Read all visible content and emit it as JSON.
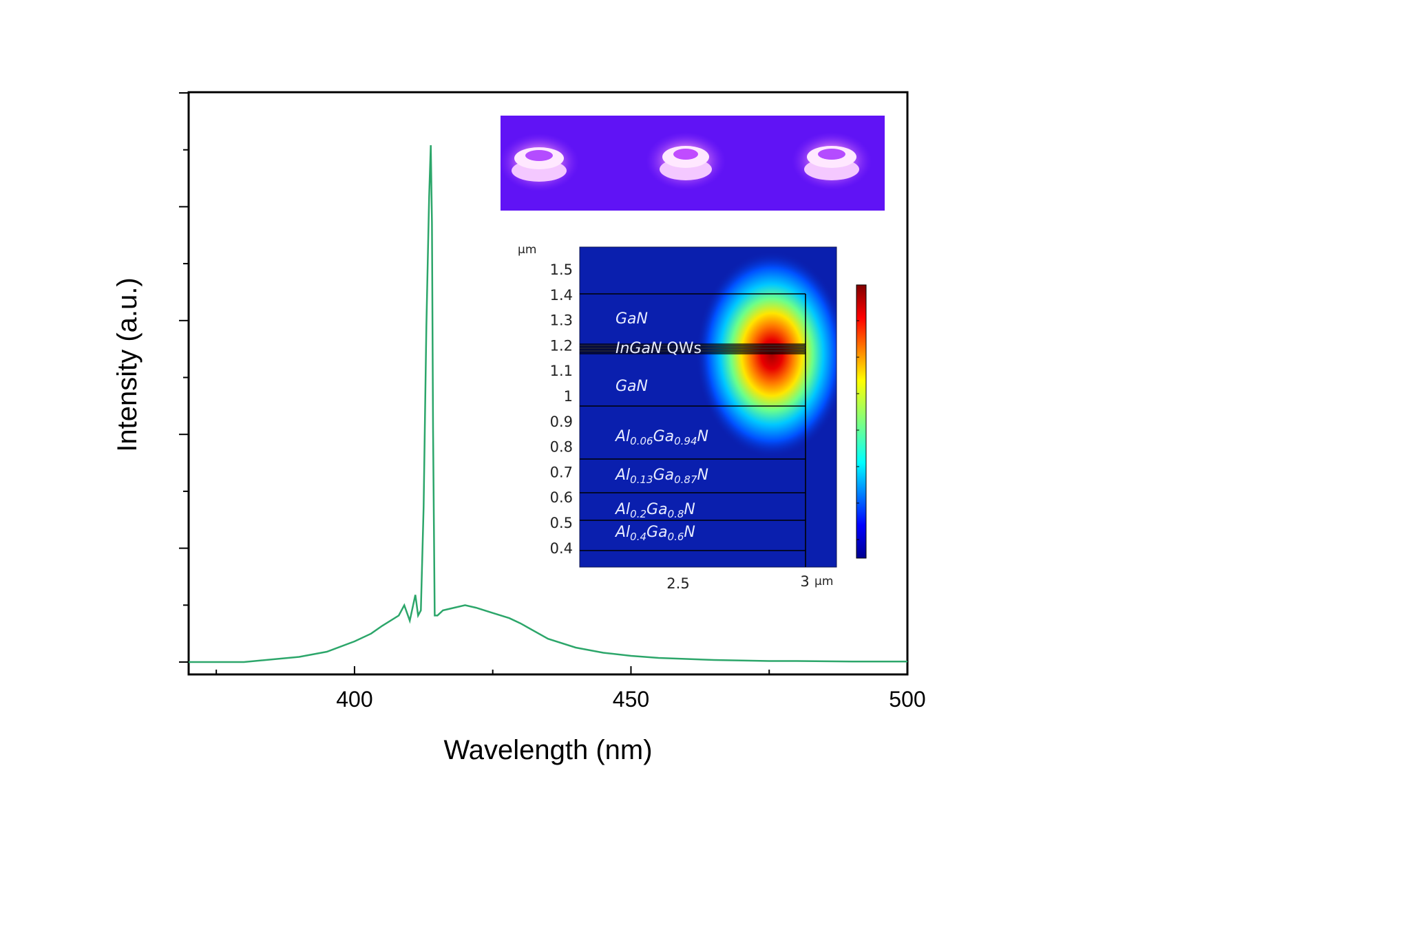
{
  "chart_data": [
    {
      "type": "line",
      "xlabel": "Wavelength (nm)",
      "ylabel": "Intensity (a.u.)",
      "xlim": [
        370,
        500
      ],
      "ylim": [
        0,
        1.1
      ],
      "x_ticks": [
        400,
        450,
        500
      ],
      "y_tick_labels_shown": false,
      "line_color": "#2ca66a",
      "series": [
        {
          "x": [
            370,
            380,
            390,
            395,
            400,
            403,
            405,
            408,
            409,
            410,
            411,
            411.5,
            412,
            412.5,
            413,
            413.5,
            413.8,
            414,
            414.2,
            414.5,
            415,
            416,
            418,
            420,
            422,
            425,
            428,
            430,
            435,
            440,
            445,
            450,
            455,
            460,
            465,
            470,
            475,
            480,
            490,
            500
          ],
          "y": [
            0.0,
            0.0,
            0.01,
            0.02,
            0.04,
            0.055,
            0.07,
            0.09,
            0.11,
            0.08,
            0.13,
            0.09,
            0.1,
            0.3,
            0.65,
            0.9,
            1.0,
            0.85,
            0.45,
            0.09,
            0.09,
            0.1,
            0.105,
            0.11,
            0.105,
            0.095,
            0.085,
            0.075,
            0.045,
            0.028,
            0.018,
            0.012,
            0.008,
            0.006,
            0.004,
            0.003,
            0.002,
            0.002,
            0.001,
            0.001
          ]
        }
      ]
    },
    {
      "type": "heatmap",
      "x_unit": "µm",
      "y_unit": "µm",
      "x_ticks": [
        "2.5",
        "3"
      ],
      "y_ticks": [
        "1.5",
        "1.4",
        "1.3",
        "1.2",
        "1.1",
        "1",
        "0.9",
        "0.8",
        "0.7",
        "0.6",
        "0.5",
        "0.4"
      ],
      "xlim": [
        2.3,
        3.05
      ],
      "ylim": [
        0.34,
        1.55
      ],
      "colormap": "jet",
      "mode_center": {
        "x": 2.89,
        "y": 1.19
      },
      "layers": [
        {
          "name": "GaN",
          "y_top": 1.4,
          "y_bottom": 1.22
        },
        {
          "name": "InGaN QWs",
          "y_top": 1.22,
          "y_bottom": 1.16
        },
        {
          "name": "GaN",
          "y_top": 1.16,
          "y_bottom": 0.96
        },
        {
          "name": "Al0.06Ga0.94N",
          "y_top": 0.96,
          "y_bottom": 0.75
        },
        {
          "name": "Al0.13Ga0.87N",
          "y_top": 0.75,
          "y_bottom": 0.62
        },
        {
          "name": "Al0.2Ga0.8N",
          "y_top": 0.62,
          "y_bottom": 0.51
        },
        {
          "name": "Al0.4Ga0.6N",
          "y_top": 0.51,
          "y_bottom": 0.39
        }
      ]
    }
  ],
  "inset_heatmap_labels": {
    "y_unit": "µm",
    "x_tick_1": "2.5",
    "x_tick_2": "3",
    "x_unit": "µm",
    "layer_gan_top": "GaN",
    "layer_ingan_italic": "InGaN",
    "layer_ingan_suffix": " QWs",
    "layer_gan_bottom": "GaN",
    "al1": {
      "a": "Al",
      "a_sub": "0.06",
      "b": "Ga",
      "b_sub": "0.94",
      "c": "N"
    },
    "al2": {
      "a": "Al",
      "a_sub": "0.13",
      "b": "Ga",
      "b_sub": "0.87",
      "c": "N"
    },
    "al3": {
      "a": "Al",
      "a_sub": "0.2",
      "b": "Ga",
      "b_sub": "0.8",
      "c": "N"
    },
    "al4": {
      "a": "Al",
      "a_sub": "0.4",
      "b": "Ga",
      "b_sub": "0.6",
      "c": "N"
    }
  },
  "photo_inset": {
    "background_color": "#6a18ff",
    "device_count": 3
  }
}
